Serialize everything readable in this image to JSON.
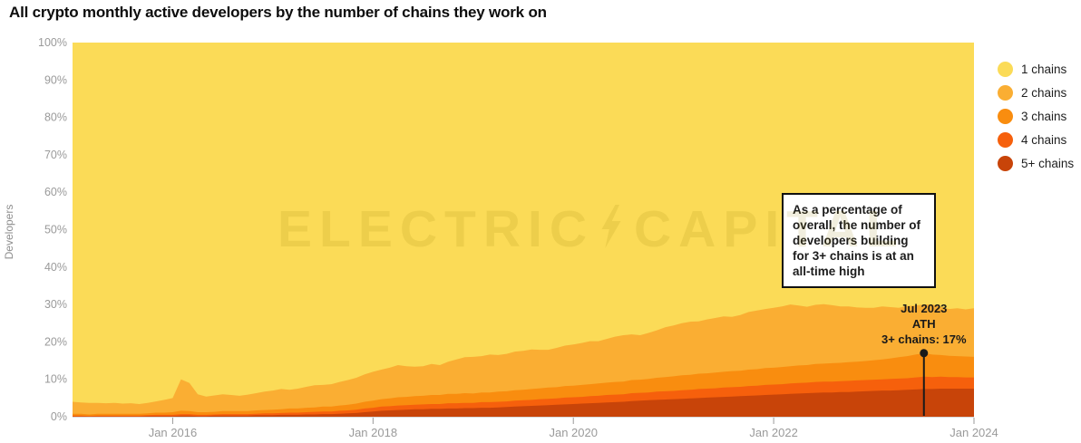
{
  "title": "All crypto monthly active developers by the number of chains they work on",
  "y_axis": {
    "label": "Developers",
    "tick_labels": [
      "0%",
      "10%",
      "20%",
      "30%",
      "40%",
      "50%",
      "60%",
      "70%",
      "80%",
      "90%",
      "100%"
    ]
  },
  "x_axis": {
    "ticks": [
      {
        "label": "Jan 2016",
        "month_index": 12
      },
      {
        "label": "Jan 2018",
        "month_index": 36
      },
      {
        "label": "Jan 2020",
        "month_index": 60
      },
      {
        "label": "Jan 2022",
        "month_index": 84
      },
      {
        "label": "Jan 2024",
        "month_index": 108
      }
    ]
  },
  "legend": [
    {
      "label": "1 chains",
      "color": "#FBDB57"
    },
    {
      "label": "2 chains",
      "color": "#FAAE33"
    },
    {
      "label": "3 chains",
      "color": "#F98D0F"
    },
    {
      "label": "4 chains",
      "color": "#F6600C"
    },
    {
      "label": "5+ chains",
      "color": "#C84409"
    }
  ],
  "watermark": {
    "text_left": "ELECTRIC",
    "text_right": "CAPITAL",
    "bolt_icon": "lightning-bolt-icon"
  },
  "annotation_box": {
    "text": "As a percentage of\noverall, the number of\ndevelopers building\nfor 3+ chains is at an\nall-time high"
  },
  "ath_annotation": {
    "text": "Jul 2023\nATH\n3+ chains: 17%"
  },
  "colors": {
    "axis_tick_text": "#9a9a9a",
    "axis_line": "#d9d9d9",
    "marker": "#1a1a1a"
  },
  "chart_data": {
    "type": "area",
    "stacked": "percent",
    "title": "All crypto monthly active developers by the number of chains they work on",
    "xlabel": "",
    "ylabel": "Developers",
    "ylim": [
      0,
      100
    ],
    "x_start": "2015-01",
    "x_end": "2024-01",
    "x_interval": "monthly",
    "legend_position": "right",
    "grid": false,
    "note": "values are percent of all developers; '1 chains' fills the remainder up to 100%",
    "ath": {
      "label_lines": [
        "Jul 2023",
        "ATH",
        "3+ chains: 17%"
      ],
      "month_index": 102,
      "value_pct": 17
    },
    "series": [
      {
        "name": "1 chains",
        "color": "#FBDB57",
        "remainder": true
      },
      {
        "name": "2 chains",
        "color": "#FAAE33",
        "values": [
          3.2,
          3.0,
          3.1,
          2.9,
          2.8,
          2.9,
          2.7,
          2.8,
          2.6,
          2.8,
          3.0,
          3.4,
          3.8,
          8.4,
          7.5,
          4.8,
          4.2,
          4.4,
          4.5,
          4.3,
          4.1,
          4.4,
          4.6,
          4.9,
          5.1,
          5.4,
          5.0,
          5.3,
          5.6,
          5.9,
          5.8,
          6.0,
          6.3,
          6.6,
          6.9,
          7.3,
          7.7,
          7.9,
          8.2,
          8.6,
          8.2,
          7.9,
          7.9,
          8.3,
          8.0,
          8.6,
          9.2,
          9.6,
          9.8,
          9.7,
          10.1,
          9.8,
          10.0,
          10.3,
          10.4,
          10.6,
          10.3,
          10.1,
          10.5,
          10.8,
          11.0,
          11.2,
          11.5,
          11.3,
          11.7,
          12.1,
          12.4,
          12.2,
          11.9,
          12.3,
          12.7,
          13.3,
          13.6,
          13.9,
          14.2,
          14.0,
          14.4,
          14.6,
          14.8,
          14.5,
          14.9,
          15.4,
          15.7,
          15.8,
          16.0,
          16.2,
          16.5,
          16.0,
          15.6,
          15.8,
          15.9,
          15.5,
          15.1,
          14.9,
          14.5,
          14.2,
          14.0,
          14.2,
          13.7,
          13.2,
          13.4,
          13.1,
          13.0,
          13.4,
          12.9,
          12.5,
          12.8,
          12.6,
          13.0
        ]
      },
      {
        "name": "3 chains",
        "color": "#F98D0F",
        "values": [
          0.5,
          0.5,
          0.4,
          0.5,
          0.5,
          0.5,
          0.5,
          0.5,
          0.5,
          0.5,
          0.6,
          0.6,
          0.7,
          0.9,
          0.8,
          0.7,
          0.7,
          0.7,
          0.8,
          0.8,
          0.8,
          0.8,
          0.9,
          0.9,
          1.0,
          1.0,
          1.1,
          1.1,
          1.2,
          1.2,
          1.3,
          1.3,
          1.4,
          1.5,
          1.6,
          1.8,
          1.9,
          2.0,
          2.1,
          2.2,
          2.2,
          2.3,
          2.3,
          2.4,
          2.4,
          2.5,
          2.5,
          2.6,
          2.5,
          2.6,
          2.6,
          2.7,
          2.7,
          2.8,
          2.8,
          2.9,
          2.9,
          3.0,
          3.0,
          3.1,
          3.1,
          3.2,
          3.2,
          3.3,
          3.3,
          3.4,
          3.4,
          3.5,
          3.5,
          3.6,
          3.7,
          3.8,
          3.9,
          4.0,
          4.0,
          4.1,
          4.1,
          4.2,
          4.2,
          4.3,
          4.3,
          4.4,
          4.4,
          4.5,
          4.5,
          4.6,
          4.6,
          4.7,
          4.7,
          4.8,
          4.8,
          4.9,
          4.9,
          5.0,
          5.0,
          5.1,
          5.2,
          5.3,
          5.5,
          5.7,
          5.9,
          6.1,
          6.3,
          6.0,
          5.8,
          5.7,
          5.6,
          5.6,
          5.5
        ]
      },
      {
        "name": "4 chains",
        "color": "#F6600C",
        "values": [
          0.2,
          0.2,
          0.1,
          0.2,
          0.2,
          0.2,
          0.2,
          0.2,
          0.2,
          0.2,
          0.3,
          0.3,
          0.3,
          0.4,
          0.4,
          0.3,
          0.3,
          0.3,
          0.4,
          0.4,
          0.4,
          0.4,
          0.4,
          0.5,
          0.5,
          0.5,
          0.6,
          0.6,
          0.6,
          0.7,
          0.7,
          0.7,
          0.8,
          0.8,
          0.9,
          1.0,
          1.0,
          1.1,
          1.1,
          1.2,
          1.2,
          1.2,
          1.3,
          1.3,
          1.3,
          1.4,
          1.4,
          1.4,
          1.4,
          1.5,
          1.5,
          1.5,
          1.5,
          1.6,
          1.6,
          1.6,
          1.7,
          1.7,
          1.7,
          1.8,
          1.8,
          1.8,
          1.9,
          1.9,
          2.0,
          2.0,
          2.0,
          2.1,
          2.1,
          2.1,
          2.2,
          2.2,
          2.2,
          2.3,
          2.3,
          2.4,
          2.4,
          2.4,
          2.5,
          2.5,
          2.5,
          2.6,
          2.6,
          2.7,
          2.7,
          2.7,
          2.8,
          2.8,
          2.8,
          2.9,
          2.9,
          2.9,
          2.9,
          3.0,
          3.0,
          3.0,
          3.0,
          3.0,
          3.1,
          3.1,
          3.1,
          3.2,
          3.3,
          3.2,
          3.2,
          3.1,
          3.1,
          3.0,
          3.0
        ]
      },
      {
        "name": "5+ chains",
        "color": "#C84409",
        "values": [
          0.1,
          0.1,
          0.1,
          0.1,
          0.1,
          0.1,
          0.1,
          0.1,
          0.1,
          0.2,
          0.2,
          0.2,
          0.2,
          0.3,
          0.3,
          0.2,
          0.2,
          0.3,
          0.3,
          0.3,
          0.3,
          0.3,
          0.4,
          0.4,
          0.4,
          0.5,
          0.5,
          0.5,
          0.6,
          0.6,
          0.7,
          0.7,
          0.8,
          0.9,
          1.0,
          1.2,
          1.4,
          1.6,
          1.7,
          1.8,
          1.9,
          2.0,
          2.0,
          2.1,
          2.1,
          2.2,
          2.2,
          2.3,
          2.3,
          2.4,
          2.4,
          2.5,
          2.6,
          2.7,
          2.8,
          2.9,
          3.0,
          3.1,
          3.2,
          3.3,
          3.4,
          3.5,
          3.6,
          3.7,
          3.8,
          3.9,
          4.0,
          4.2,
          4.3,
          4.4,
          4.5,
          4.6,
          4.7,
          4.8,
          4.9,
          5.0,
          5.1,
          5.2,
          5.3,
          5.4,
          5.5,
          5.6,
          5.7,
          5.8,
          5.9,
          6.0,
          6.1,
          6.2,
          6.3,
          6.4,
          6.5,
          6.5,
          6.6,
          6.6,
          6.7,
          6.8,
          6.9,
          7.0,
          7.0,
          7.1,
          7.2,
          7.3,
          7.4,
          7.4,
          7.5,
          7.5,
          7.5,
          7.5,
          7.5
        ]
      }
    ]
  }
}
